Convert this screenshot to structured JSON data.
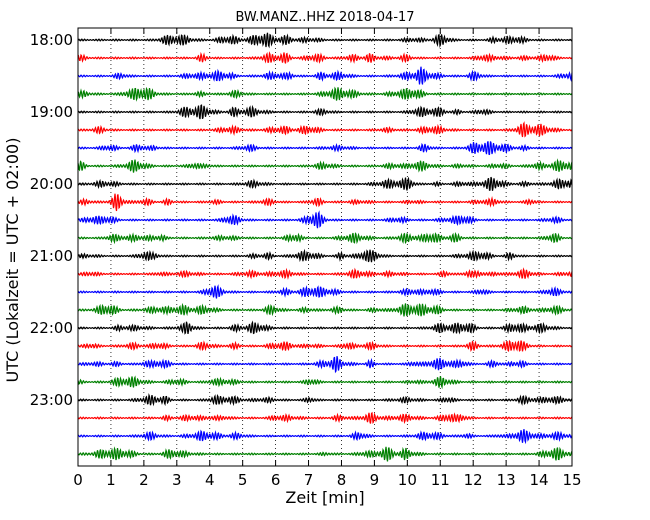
{
  "chart_data": {
    "type": "line",
    "title": "BW.MANZ..HHZ 2018-04-17",
    "xlabel": "Zeit  [min]",
    "ylabel": "UTC (Lokalzeit = UTC + 02:00)",
    "xlim": [
      0,
      15
    ],
    "x_ticks": [
      "0",
      "1",
      "2",
      "3",
      "4",
      "5",
      "6",
      "7",
      "8",
      "9",
      "10",
      "11",
      "12",
      "13",
      "14",
      "15"
    ],
    "y_tick_labels": [
      "18:00",
      "19:00",
      "20:00",
      "21:00",
      "22:00",
      "23:00"
    ],
    "grid": "vertical-dotted",
    "trace_colors": [
      "#000000",
      "#ff0000",
      "#0000ff",
      "#008000"
    ],
    "traces": [
      {
        "start": "18:00",
        "color": "#000000"
      },
      {
        "start": "18:15",
        "color": "#ff0000"
      },
      {
        "start": "18:30",
        "color": "#0000ff"
      },
      {
        "start": "18:45",
        "color": "#008000"
      },
      {
        "start": "19:00",
        "color": "#000000"
      },
      {
        "start": "19:15",
        "color": "#ff0000"
      },
      {
        "start": "19:30",
        "color": "#0000ff"
      },
      {
        "start": "19:45",
        "color": "#008000"
      },
      {
        "start": "20:00",
        "color": "#000000"
      },
      {
        "start": "20:15",
        "color": "#ff0000"
      },
      {
        "start": "20:30",
        "color": "#0000ff"
      },
      {
        "start": "20:45",
        "color": "#008000"
      },
      {
        "start": "21:00",
        "color": "#000000"
      },
      {
        "start": "21:15",
        "color": "#ff0000"
      },
      {
        "start": "21:30",
        "color": "#0000ff"
      },
      {
        "start": "21:45",
        "color": "#008000"
      },
      {
        "start": "22:00",
        "color": "#000000"
      },
      {
        "start": "22:15",
        "color": "#ff0000"
      },
      {
        "start": "22:30",
        "color": "#0000ff"
      },
      {
        "start": "22:45",
        "color": "#008000"
      },
      {
        "start": "23:00",
        "color": "#000000"
      },
      {
        "start": "23:15",
        "color": "#ff0000"
      },
      {
        "start": "23:30",
        "color": "#0000ff"
      },
      {
        "start": "23:45",
        "color": "#008000"
      }
    ]
  }
}
